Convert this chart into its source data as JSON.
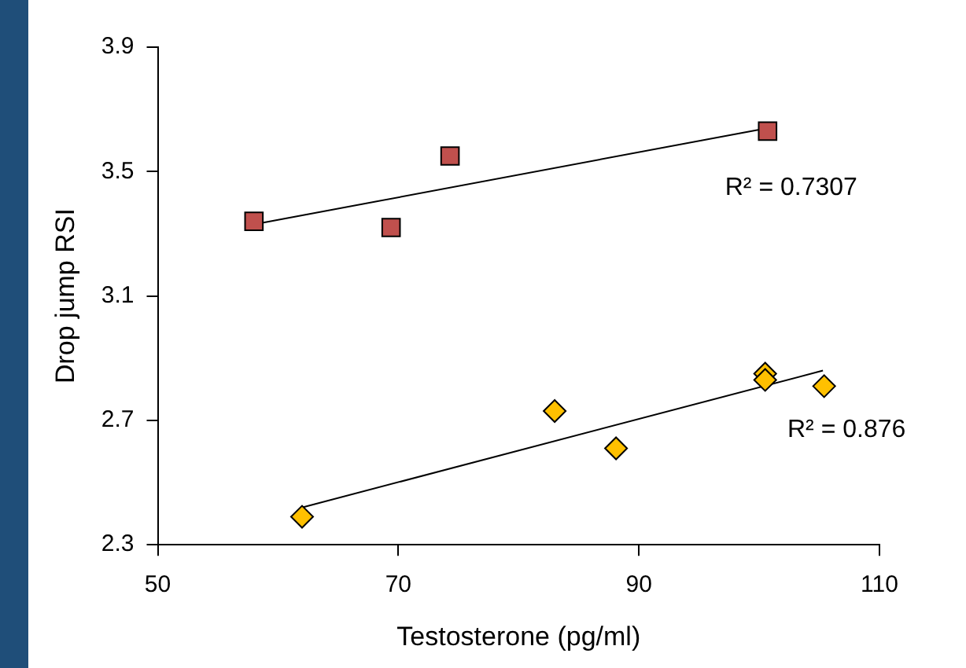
{
  "chart_data": {
    "type": "scatter",
    "xlabel": "Testosterone (pg/ml)",
    "ylabel": "Drop jump RSI",
    "xlim": [
      50,
      110
    ],
    "xticks": [
      50,
      70,
      90,
      110
    ],
    "ylim": [
      2.3,
      3.9
    ],
    "yticks": [
      2.3,
      2.7,
      3.1,
      3.5,
      3.9
    ],
    "grid": false,
    "legend": false,
    "series": [
      {
        "color": "#c0504d",
        "marker": "square",
        "x": [
          58.0,
          69.4,
          74.3,
          100.7
        ],
        "values": [
          3.34,
          3.32,
          3.55,
          3.63
        ]
      },
      {
        "color": "#ffc000",
        "marker": "diamond",
        "x": [
          62.0,
          83.0,
          88.1,
          100.5,
          100.5,
          105.4
        ],
        "values": [
          2.39,
          2.73,
          2.61,
          2.85,
          2.83,
          2.81
        ]
      },
      {
        "type": "line",
        "color": "#000000",
        "marker": "none",
        "x": [
          58.0,
          100.7
        ],
        "values": [
          3.33,
          3.64
        ]
      },
      {
        "type": "line",
        "color": "#000000",
        "marker": "none",
        "x": [
          62.0,
          105.3
        ],
        "values": [
          2.42,
          2.86
        ]
      }
    ],
    "annotations": [
      "R² = 0.7307",
      "R² = 0.876"
    ]
  }
}
